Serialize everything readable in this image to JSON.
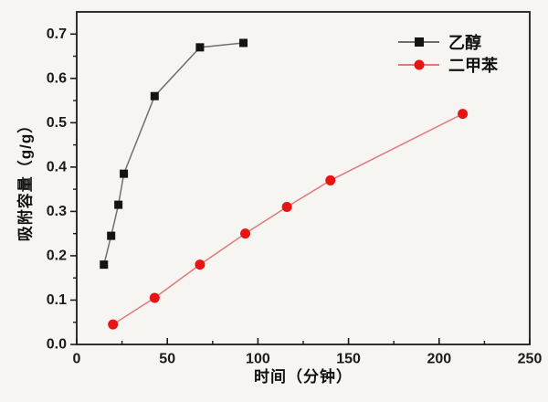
{
  "chart_data": {
    "type": "line",
    "title": "",
    "xlabel": "时间（分钟）",
    "ylabel": "吸附容量（g/g）",
    "xlim": [
      0,
      250
    ],
    "ylim": [
      0,
      0.75
    ],
    "xticks": [
      0,
      50,
      100,
      150,
      200,
      250
    ],
    "yticks": [
      "0.0",
      "0.1",
      "0.2",
      "0.3",
      "0.4",
      "0.5",
      "0.6",
      "0.7"
    ],
    "x_minor_step": 25,
    "y_minor_step": 0.05,
    "grid": false,
    "legend_position": "top-right",
    "frame_color": "#1b1b1b",
    "background": "#f6f5f2",
    "series": [
      {
        "id": "ethanol",
        "name": "乙醇",
        "marker": "square",
        "marker_color": "#141414",
        "line_color": "#6e6e6e",
        "x": [
          15,
          19,
          23,
          26,
          43,
          68,
          92
        ],
        "y": [
          0.18,
          0.245,
          0.315,
          0.385,
          0.56,
          0.67,
          0.68
        ]
      },
      {
        "id": "xylene",
        "name": "二甲苯",
        "marker": "circle",
        "marker_color": "#e81414",
        "line_color": "#e07a7a",
        "x": [
          20,
          43,
          68,
          93,
          116,
          140,
          213
        ],
        "y": [
          0.045,
          0.105,
          0.18,
          0.25,
          0.31,
          0.37,
          0.52
        ]
      }
    ]
  }
}
